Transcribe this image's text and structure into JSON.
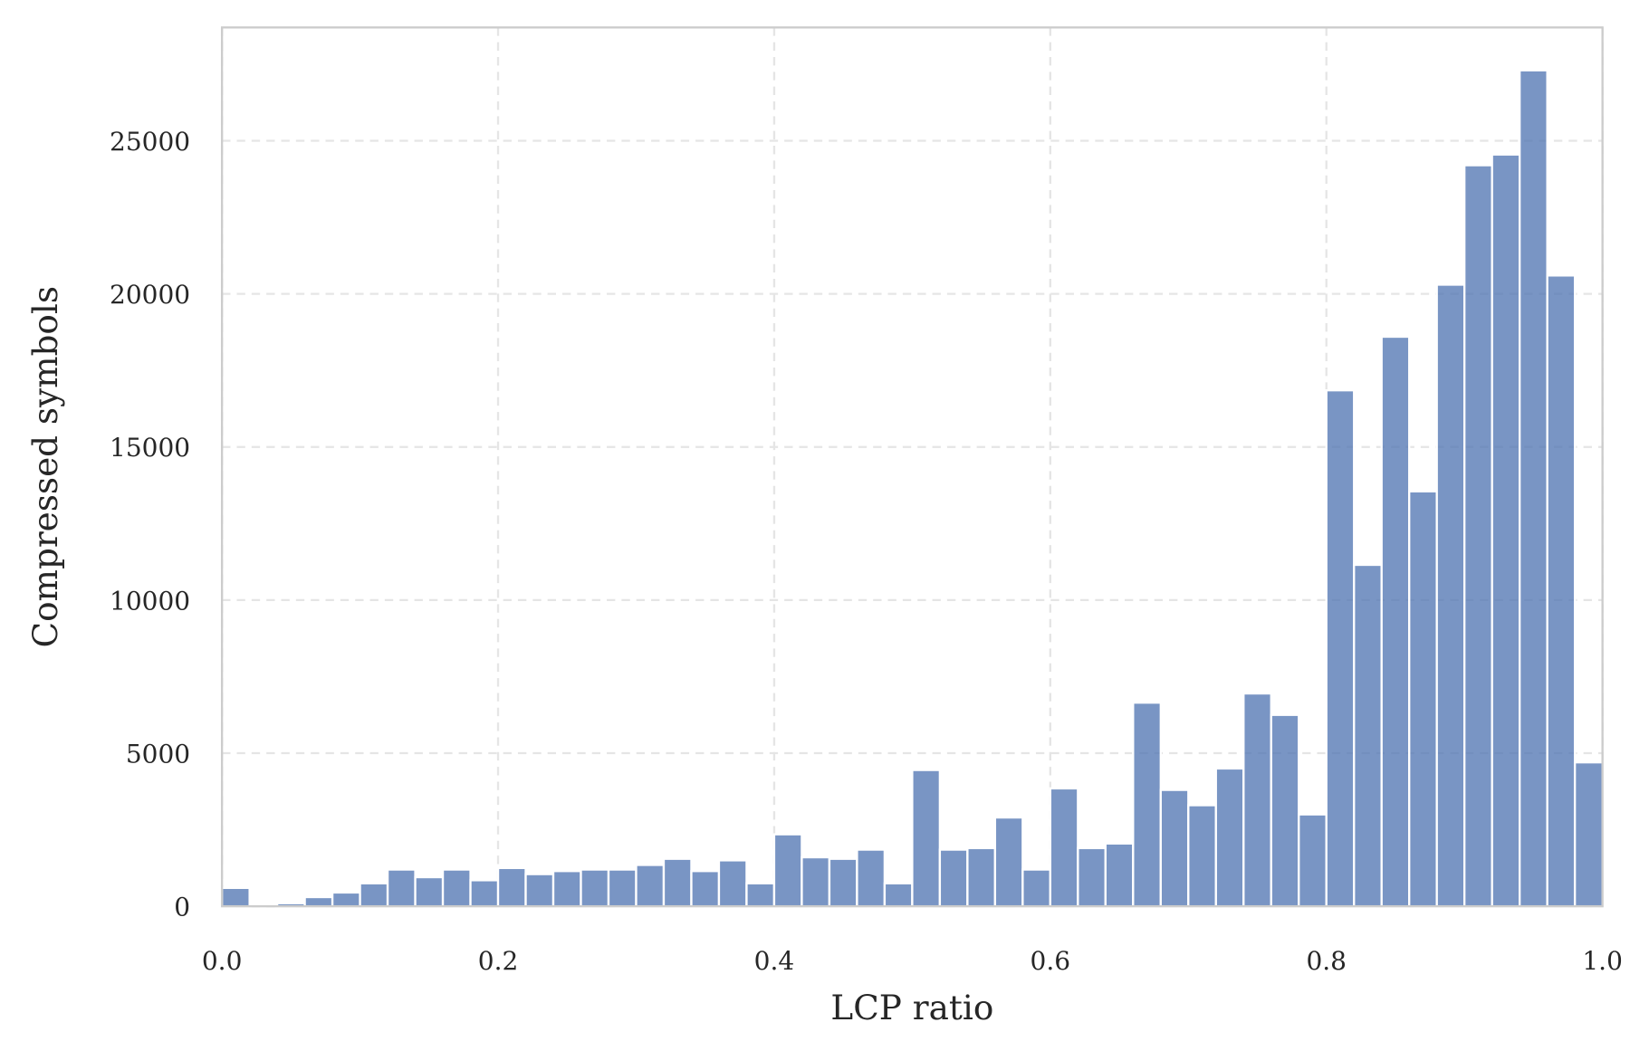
{
  "chart_data": {
    "type": "bar",
    "subtype": "histogram",
    "title": "",
    "xlabel": "LCP ratio",
    "ylabel": "Compressed symbols",
    "xlim": [
      0.0,
      1.0
    ],
    "ylim": [
      0,
      28700
    ],
    "bin_width": 0.02,
    "bin_start": 0.0,
    "values": [
      600,
      0,
      100,
      300,
      450,
      750,
      1200,
      950,
      1200,
      850,
      1250,
      1050,
      1150,
      1200,
      1200,
      1350,
      1550,
      1150,
      1500,
      750,
      2350,
      1600,
      1550,
      1850,
      750,
      4450,
      1850,
      1900,
      2900,
      1200,
      3850,
      1900,
      2050,
      6650,
      3800,
      3300,
      4500,
      6950,
      6250,
      3000,
      16850,
      11150,
      18600,
      13550,
      20300,
      24200,
      24550,
      27300,
      20600,
      4700
    ],
    "xticks": [
      "0.0",
      "0.2",
      "0.4",
      "0.6",
      "0.8",
      "1.0"
    ],
    "yticks": [
      "0",
      "5000",
      "10000",
      "15000",
      "20000",
      "25000"
    ],
    "grid": true,
    "bar_color": "#4c72b0",
    "bar_opacity": 0.75
  }
}
